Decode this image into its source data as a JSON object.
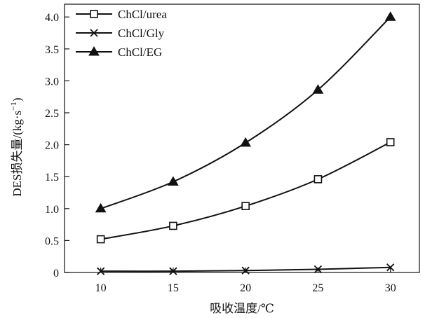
{
  "chart_data": {
    "type": "line",
    "xlabel": "吸收温度/℃",
    "ylabel_main": "DES损失量/(kg·s",
    "ylabel_sup": "−1",
    "ylabel_close": ")",
    "x": [
      10,
      15,
      20,
      25,
      30
    ],
    "x_ticks": [
      "10",
      "15",
      "20",
      "25",
      "30"
    ],
    "xlim": [
      7.5,
      32
    ],
    "ylim": [
      0,
      4.2
    ],
    "y_ticks": [
      "0",
      "0.5",
      "1.0",
      "1.5",
      "2.0",
      "2.5",
      "3.0",
      "3.5",
      "4.0"
    ],
    "y_tick_values": [
      0,
      0.5,
      1.0,
      1.5,
      2.0,
      2.5,
      3.0,
      3.5,
      4.0
    ],
    "grid": false,
    "legend_position": "top-left",
    "series": [
      {
        "name": "ChCl/urea",
        "marker": "open-square",
        "values": [
          0.52,
          0.73,
          1.04,
          1.46,
          2.04
        ]
      },
      {
        "name": "ChCl/Gly",
        "marker": "x-cross",
        "values": [
          0.02,
          0.02,
          0.03,
          0.05,
          0.08
        ]
      },
      {
        "name": "ChCl/EG",
        "marker": "filled-triangle",
        "values": [
          1.0,
          1.42,
          2.03,
          2.86,
          4.0
        ]
      }
    ]
  }
}
